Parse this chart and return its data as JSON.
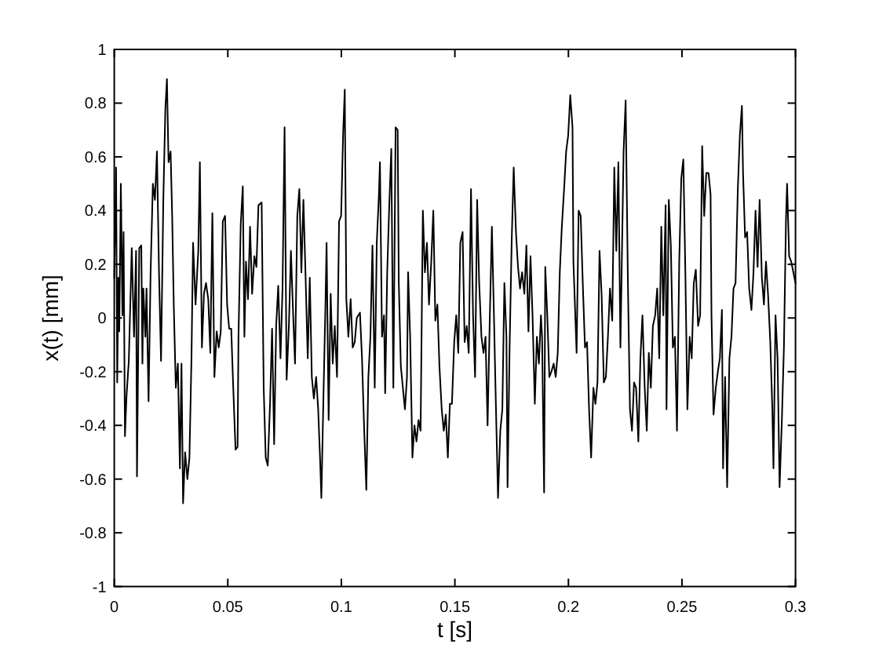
{
  "chart_data": {
    "type": "line",
    "xlabel": "t [s]",
    "ylabel": "x(t) [mm]",
    "color": "#000000",
    "xlim": [
      0,
      0.3
    ],
    "ylim": [
      -1,
      1
    ],
    "xticks": [
      0,
      0.05,
      0.1,
      0.15,
      0.2,
      0.25,
      0.3
    ],
    "yticks": [
      -1,
      -0.8,
      -0.6,
      -0.4,
      -0.2,
      0,
      0.2,
      0.4,
      0.6,
      0.8,
      1
    ],
    "x": [
      0,
      0.0008,
      0.0013,
      0.0018,
      0.0022,
      0.0029,
      0.0036,
      0.0041,
      0.0047,
      0.0054,
      0.0064,
      0.0077,
      0.0087,
      0.0096,
      0.01,
      0.011,
      0.0119,
      0.0124,
      0.0128,
      0.0137,
      0.0142,
      0.0151,
      0.016,
      0.017,
      0.0179,
      0.0188,
      0.0197,
      0.0206,
      0.0216,
      0.0225,
      0.0232,
      0.0239,
      0.0248,
      0.0255,
      0.0262,
      0.0271,
      0.028,
      0.0289,
      0.0296,
      0.0303,
      0.0312,
      0.0322,
      0.0331,
      0.034,
      0.0347,
      0.0358,
      0.037,
      0.0377,
      0.0386,
      0.0395,
      0.0404,
      0.0414,
      0.0423,
      0.0432,
      0.0441,
      0.0451,
      0.046,
      0.0469,
      0.0478,
      0.0488,
      0.0497,
      0.0506,
      0.0515,
      0.0524,
      0.0534,
      0.0543,
      0.0547,
      0.0557,
      0.0566,
      0.0573,
      0.058,
      0.0589,
      0.0598,
      0.0607,
      0.0617,
      0.0626,
      0.0635,
      0.0649,
      0.0658,
      0.0667,
      0.0676,
      0.0686,
      0.0695,
      0.0704,
      0.0713,
      0.0722,
      0.0732,
      0.0741,
      0.075,
      0.0759,
      0.0769,
      0.0778,
      0.0787,
      0.0796,
      0.0806,
      0.0815,
      0.0824,
      0.0833,
      0.0842,
      0.0852,
      0.0861,
      0.087,
      0.0879,
      0.0889,
      0.0898,
      0.0907,
      0.0912,
      0.0921,
      0.093,
      0.0935,
      0.0944,
      0.0953,
      0.0962,
      0.0971,
      0.0981,
      0.099,
      0.0999,
      0.1008,
      0.1015,
      0.1022,
      0.1031,
      0.1041,
      0.105,
      0.1059,
      0.1068,
      0.1082,
      0.1091,
      0.11,
      0.111,
      0.1119,
      0.1128,
      0.1137,
      0.1147,
      0.1156,
      0.1165,
      0.117,
      0.1179,
      0.1188,
      0.1193,
      0.1202,
      0.1211,
      0.122,
      0.1229,
      0.1239,
      0.1248,
      0.1253,
      0.1262,
      0.1271,
      0.128,
      0.1289,
      0.1294,
      0.1303,
      0.1313,
      0.1322,
      0.1331,
      0.134,
      0.1349,
      0.1359,
      0.1368,
      0.1377,
      0.1386,
      0.1396,
      0.1405,
      0.1414,
      0.1423,
      0.1432,
      0.1442,
      0.1451,
      0.146,
      0.1469,
      0.1478,
      0.1487,
      0.1497,
      0.1506,
      0.1515,
      0.1524,
      0.1534,
      0.1543,
      0.1552,
      0.1561,
      0.1571,
      0.158,
      0.1589,
      0.1598,
      0.1607,
      0.1617,
      0.1626,
      0.1635,
      0.1644,
      0.1653,
      0.1663,
      0.1672,
      0.1681,
      0.169,
      0.17,
      0.1709,
      0.1718,
      0.1727,
      0.1732,
      0.1741,
      0.175,
      0.1759,
      0.1769,
      0.1778,
      0.1787,
      0.1796,
      0.1806,
      0.1815,
      0.1824,
      0.1833,
      0.1842,
      0.1852,
      0.1861,
      0.187,
      0.1879,
      0.1884,
      0.1893,
      0.1898,
      0.1907,
      0.1916,
      0.1925,
      0.1935,
      0.1944,
      0.1953,
      0.1962,
      0.1971,
      0.1981,
      0.199,
      0.1999,
      0.2008,
      0.2018,
      0.2022,
      0.2036,
      0.2045,
      0.2054,
      0.2064,
      0.2073,
      0.2082,
      0.2091,
      0.21,
      0.211,
      0.2119,
      0.2128,
      0.2137,
      0.2146,
      0.2156,
      0.2165,
      0.2174,
      0.2183,
      0.2193,
      0.2202,
      0.2211,
      0.222,
      0.2229,
      0.2243,
      0.2252,
      0.2262,
      0.2271,
      0.228,
      0.2289,
      0.2298,
      0.2308,
      0.2317,
      0.2326,
      0.2336,
      0.2345,
      0.2354,
      0.2363,
      0.2372,
      0.2382,
      0.2391,
      0.24,
      0.2409,
      0.2418,
      0.2428,
      0.2432,
      0.2442,
      0.2451,
      0.246,
      0.2469,
      0.2478,
      0.2488,
      0.2497,
      0.2506,
      0.2515,
      0.2524,
      0.2534,
      0.2543,
      0.2552,
      0.2561,
      0.2571,
      0.258,
      0.2589,
      0.2598,
      0.2607,
      0.2617,
      0.2626,
      0.263,
      0.2639,
      0.2649,
      0.2658,
      0.2667,
      0.2676,
      0.2681,
      0.269,
      0.2699,
      0.2709,
      0.2718,
      0.2727,
      0.2736,
      0.2746,
      0.2755,
      0.2764,
      0.2769,
      0.2778,
      0.2787,
      0.2796,
      0.2806,
      0.2815,
      0.2824,
      0.2833,
      0.2842,
      0.2852,
      0.2861,
      0.287,
      0.2879,
      0.2889,
      0.2898,
      0.2903,
      0.2912,
      0.2921,
      0.293,
      0.294,
      0.2949,
      0.2958,
      0.2963,
      0.2972,
      0.2981,
      0.3
    ],
    "values": [
      0.15,
      0.56,
      -0.24,
      0.15,
      -0.05,
      0.5,
      0.01,
      0.32,
      -0.44,
      -0.29,
      -0.16,
      0.26,
      -0.07,
      0.25,
      -0.59,
      0.26,
      0.27,
      -0.17,
      0.11,
      -0.07,
      0.11,
      -0.31,
      0.17,
      0.5,
      0.44,
      0.62,
      0.17,
      -0.16,
      0.44,
      0.78,
      0.89,
      0.58,
      0.62,
      0.38,
      0.05,
      -0.26,
      -0.17,
      -0.56,
      -0.17,
      -0.69,
      -0.5,
      -0.6,
      -0.52,
      -0.15,
      0.28,
      0.05,
      0.25,
      0.58,
      -0.11,
      0.09,
      0.13,
      0.07,
      -0.13,
      0.39,
      -0.22,
      -0.05,
      -0.11,
      -0.05,
      0.36,
      0.38,
      0.05,
      -0.04,
      -0.04,
      -0.26,
      -0.49,
      -0.48,
      -0.07,
      0.35,
      0.49,
      -0.07,
      0.21,
      0.07,
      0.34,
      0.09,
      0.23,
      0.19,
      0.42,
      0.43,
      -0.26,
      -0.52,
      -0.55,
      -0.32,
      -0.04,
      -0.47,
      -0.03,
      0.12,
      -0.15,
      0.11,
      0.71,
      -0.23,
      -0.03,
      0.25,
      0.03,
      -0.17,
      0.38,
      0.48,
      0.17,
      0.44,
      0.17,
      -0.15,
      0.15,
      -0.22,
      -0.3,
      -0.22,
      -0.34,
      -0.54,
      -0.67,
      -0.3,
      0.05,
      0.28,
      -0.38,
      0.09,
      -0.17,
      -0.03,
      -0.22,
      0.36,
      0.38,
      0.69,
      0.85,
      0.07,
      -0.07,
      0.07,
      -0.11,
      -0.09,
      0,
      0.02,
      -0.15,
      -0.4,
      -0.64,
      -0.22,
      -0.07,
      0.27,
      -0.26,
      0.28,
      0.45,
      0.58,
      -0.07,
      0.01,
      -0.28,
      0.17,
      0.42,
      0.63,
      -0.26,
      0.71,
      0.7,
      0.13,
      -0.18,
      -0.26,
      -0.34,
      -0.22,
      0.17,
      -0.07,
      -0.52,
      -0.4,
      -0.46,
      -0.38,
      -0.42,
      0.4,
      0.17,
      0.28,
      0.05,
      0.21,
      0.4,
      -0.01,
      0.05,
      -0.18,
      -0.34,
      -0.42,
      -0.36,
      -0.52,
      -0.32,
      -0.32,
      -0.09,
      0.01,
      -0.13,
      0.28,
      0.32,
      -0.09,
      -0.03,
      -0.13,
      0.48,
      0.01,
      -0.22,
      0.44,
      0.13,
      -0.07,
      -0.13,
      -0.07,
      -0.4,
      -0.03,
      0.34,
      0.01,
      -0.34,
      -0.67,
      -0.42,
      -0.34,
      0.13,
      -0.07,
      -0.63,
      -0.11,
      0.28,
      0.56,
      0.32,
      0.19,
      0.11,
      0.17,
      0.09,
      0.27,
      -0.05,
      0.23,
      0.01,
      -0.32,
      -0.07,
      -0.17,
      0.01,
      -0.07,
      -0.65,
      0.19,
      0.01,
      -0.22,
      -0.2,
      -0.17,
      -0.22,
      -0.13,
      0.17,
      0.34,
      0.48,
      0.62,
      0.68,
      0.83,
      0.71,
      0.21,
      -0.13,
      0.4,
      0.38,
      0.11,
      -0.11,
      -0.09,
      -0.34,
      -0.52,
      -0.26,
      -0.32,
      -0.24,
      0.25,
      0.09,
      -0.24,
      -0.22,
      -0.07,
      0.11,
      -0.01,
      0.56,
      0.25,
      0.58,
      -0.11,
      0.62,
      0.81,
      0.13,
      -0.34,
      -0.42,
      -0.24,
      -0.26,
      -0.46,
      -0.15,
      0.01,
      -0.26,
      -0.42,
      -0.13,
      -0.26,
      -0.03,
      0.01,
      0.11,
      -0.15,
      0.34,
      0.01,
      0.42,
      -0.34,
      0.44,
      0.27,
      -0.11,
      -0.07,
      -0.42,
      0.21,
      0.52,
      0.59,
      0.17,
      -0.34,
      -0.07,
      -0.15,
      0.13,
      0.18,
      -0.03,
      0.01,
      0.64,
      0.38,
      0.54,
      0.54,
      0.46,
      0.01,
      -0.36,
      -0.26,
      -0.2,
      -0.15,
      0.03,
      -0.56,
      -0.22,
      -0.63,
      -0.15,
      -0.07,
      0.11,
      0.13,
      0.48,
      0.68,
      0.79,
      0.54,
      0.3,
      0.32,
      0.11,
      0.03,
      0.17,
      0.4,
      0.19,
      0.44,
      0.15,
      0.05,
      0.21,
      0.09,
      -0.09,
      -0.34,
      -0.56,
      0.01,
      -0.15,
      -0.63,
      -0.38,
      -0.11,
      0.36,
      0.5,
      0.23,
      0.21,
      0.13
    ]
  }
}
